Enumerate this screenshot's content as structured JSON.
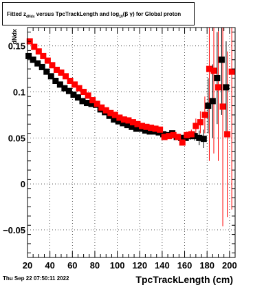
{
  "title": {
    "prefix": "Fitted  z",
    "sub1": "dNdx",
    "middle": "  versus TpcTrackLength and log",
    "sub2": "10",
    "suffix": "(β  γ) for Global proton"
  },
  "footer": {
    "date": "Thu Sep 22 07:50:11 2022"
  },
  "colors": {
    "series1": "#000000",
    "series2": "#ff0000",
    "grid": "#000000"
  },
  "chart_data": {
    "type": "scatter",
    "xlabel": "TpcTrackLength (cm)",
    "ylabel": "dNdx",
    "xlim": [
      20,
      205
    ],
    "ylim": [
      -0.08,
      0.17
    ],
    "grid": true,
    "xticks": [
      "20",
      "40",
      "60",
      "80",
      "100",
      "120",
      "140",
      "160",
      "180",
      "200"
    ],
    "yticks": [
      "−0.05",
      "0",
      "0.05",
      "0.1",
      "0.15"
    ],
    "series": [
      {
        "marker": "square",
        "x": [
          21,
          25,
          29,
          33,
          37,
          41,
          45,
          49,
          53,
          57,
          61,
          65,
          69,
          73,
          77,
          81,
          85,
          89,
          93,
          97,
          101,
          105,
          109,
          113,
          117,
          121,
          125,
          129,
          133,
          137,
          141,
          145,
          149,
          153,
          157,
          161,
          165,
          169,
          173,
          177,
          181,
          185,
          189,
          193,
          197
        ],
        "y": [
          0.139,
          0.135,
          0.131,
          0.127,
          0.122,
          0.117,
          0.112,
          0.108,
          0.104,
          0.101,
          0.097,
          0.094,
          0.09,
          0.088,
          0.087,
          0.086,
          0.081,
          0.078,
          0.074,
          0.07,
          0.068,
          0.066,
          0.064,
          0.062,
          0.06,
          0.06,
          0.058,
          0.057,
          0.057,
          0.056,
          0.054,
          0.053,
          0.055,
          0.051,
          0.05,
          0.05,
          0.052,
          0.052,
          0.05,
          0.049,
          0.085,
          0.09,
          0.115,
          0.135,
          0.105
        ],
        "err": [
          0.002,
          0.002,
          0.002,
          0.002,
          0.002,
          0.002,
          0.002,
          0.002,
          0.002,
          0.002,
          0.002,
          0.002,
          0.002,
          0.002,
          0.002,
          0.002,
          0.002,
          0.002,
          0.002,
          0.002,
          0.002,
          0.002,
          0.002,
          0.002,
          0.002,
          0.002,
          0.002,
          0.002,
          0.002,
          0.002,
          0.002,
          0.002,
          0.002,
          0.002,
          0.003,
          0.003,
          0.004,
          0.005,
          0.008,
          0.01,
          0.03,
          0.04,
          0.05,
          0.06,
          0.05
        ]
      },
      {
        "marker": "square",
        "x": [
          22,
          26,
          30,
          34,
          38,
          42,
          46,
          50,
          54,
          58,
          62,
          66,
          70,
          74,
          78,
          82,
          86,
          90,
          94,
          98,
          102,
          106,
          110,
          114,
          118,
          122,
          126,
          130,
          134,
          138,
          142,
          146,
          150,
          154,
          158,
          162,
          166,
          170,
          174,
          178,
          182,
          186,
          190,
          194,
          198,
          202
        ],
        "y": [
          0.155,
          0.149,
          0.144,
          0.139,
          0.134,
          0.129,
          0.124,
          0.121,
          0.117,
          0.112,
          0.108,
          0.104,
          0.1,
          0.096,
          0.091,
          0.087,
          0.083,
          0.08,
          0.077,
          0.075,
          0.072,
          0.07,
          0.069,
          0.067,
          0.065,
          0.063,
          0.062,
          0.061,
          0.06,
          0.059,
          0.051,
          0.052,
          0.053,
          0.051,
          0.045,
          0.053,
          0.054,
          0.063,
          0.067,
          0.075,
          0.125,
          0.123,
          0.105,
          0.084,
          0.054,
          0.122
        ],
        "err": [
          0.002,
          0.002,
          0.002,
          0.002,
          0.002,
          0.002,
          0.002,
          0.002,
          0.002,
          0.002,
          0.002,
          0.002,
          0.002,
          0.002,
          0.002,
          0.002,
          0.002,
          0.002,
          0.002,
          0.002,
          0.002,
          0.002,
          0.002,
          0.002,
          0.002,
          0.002,
          0.002,
          0.002,
          0.002,
          0.002,
          0.003,
          0.003,
          0.003,
          0.003,
          0.003,
          0.004,
          0.005,
          0.008,
          0.012,
          0.02,
          0.1,
          0.09,
          0.08,
          0.13,
          0.09,
          0.15
        ]
      }
    ]
  }
}
